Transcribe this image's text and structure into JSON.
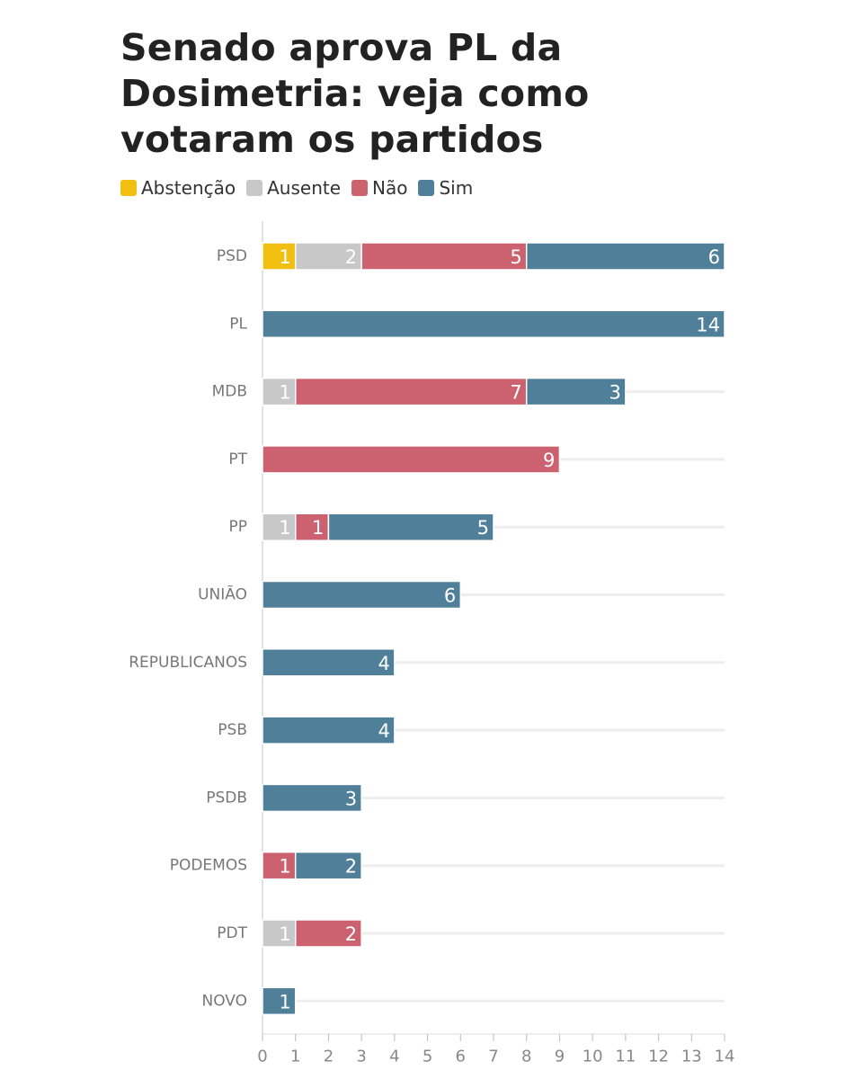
{
  "title": "Senado aprova PL da Dosimetria: veja como votaram os partidos",
  "colors": {
    "Abstenção": "#f1bf10",
    "Ausente": "#c8c8c8",
    "Não": "#cc6270",
    "Sim": "#507f9a"
  },
  "chart_data": {
    "type": "bar",
    "orientation": "horizontal",
    "stacked": true,
    "title": "Senado aprova PL da Dosimetria: veja como votaram os partidos",
    "legend_position": "top-left",
    "grid": true,
    "categories": [
      "PSD",
      "PL",
      "MDB",
      "PT",
      "PP",
      "UNIÃO",
      "REPUBLICANOS",
      "PSB",
      "PSDB",
      "PODEMOS",
      "PDT",
      "NOVO"
    ],
    "series": [
      {
        "name": "Abstenção",
        "values": [
          1,
          0,
          0,
          0,
          0,
          0,
          0,
          0,
          0,
          0,
          0,
          0
        ]
      },
      {
        "name": "Ausente",
        "values": [
          2,
          0,
          1,
          0,
          1,
          0,
          0,
          0,
          0,
          0,
          1,
          0
        ]
      },
      {
        "name": "Não",
        "values": [
          5,
          0,
          7,
          9,
          1,
          0,
          0,
          0,
          0,
          1,
          2,
          0
        ]
      },
      {
        "name": "Sim",
        "values": [
          6,
          14,
          3,
          0,
          5,
          6,
          4,
          4,
          3,
          2,
          0,
          1
        ]
      }
    ],
    "xlim": [
      0,
      14
    ],
    "xticks": [
      "0",
      "1",
      "2",
      "3",
      "4",
      "5",
      "6",
      "7",
      "8",
      "9",
      "10",
      "11",
      "12",
      "13",
      "14"
    ]
  }
}
